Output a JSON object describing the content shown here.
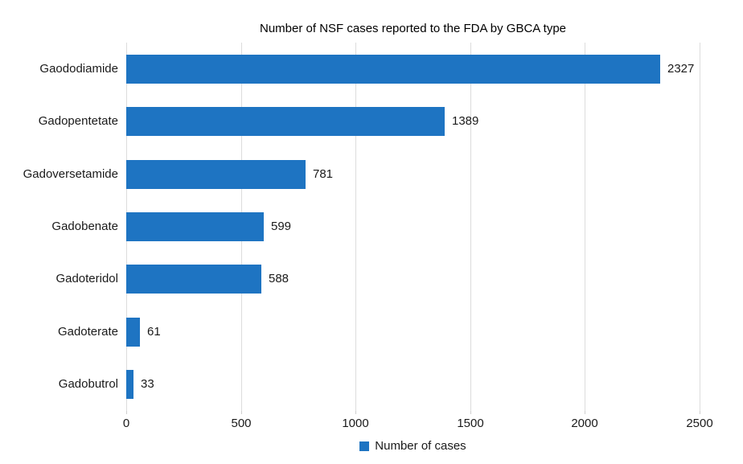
{
  "chart_data": {
    "type": "bar",
    "orientation": "horizontal",
    "title": "Number of NSF cases reported to the FDA by GBCA type",
    "categories": [
      "Gaododiamide",
      "Gadopentetate",
      "Gadoversetamide",
      "Gadobenate",
      "Gadoteridol",
      "Gadoterate",
      "Gadobutrol"
    ],
    "values": [
      2327,
      1389,
      781,
      599,
      588,
      61,
      33
    ],
    "value_labels": [
      "2327",
      "1389",
      "781",
      "599",
      "588",
      "61",
      "33"
    ],
    "xticks": [
      0,
      500,
      1000,
      1500,
      2000,
      2500
    ],
    "xtick_labels": [
      "0",
      "500",
      "1000",
      "1500",
      "2000",
      "2500"
    ],
    "xlim": [
      0,
      2500
    ],
    "xlabel": "",
    "ylabel": "",
    "grid": true,
    "legend": {
      "label": "Number of cases",
      "position": "bottom"
    },
    "colors": {
      "bar": "#1E74C2",
      "gridline": "#DCDCDC",
      "tickmark": "#CFCFCF",
      "text": "#1A1A1A",
      "background": "#FFFFFF"
    }
  }
}
